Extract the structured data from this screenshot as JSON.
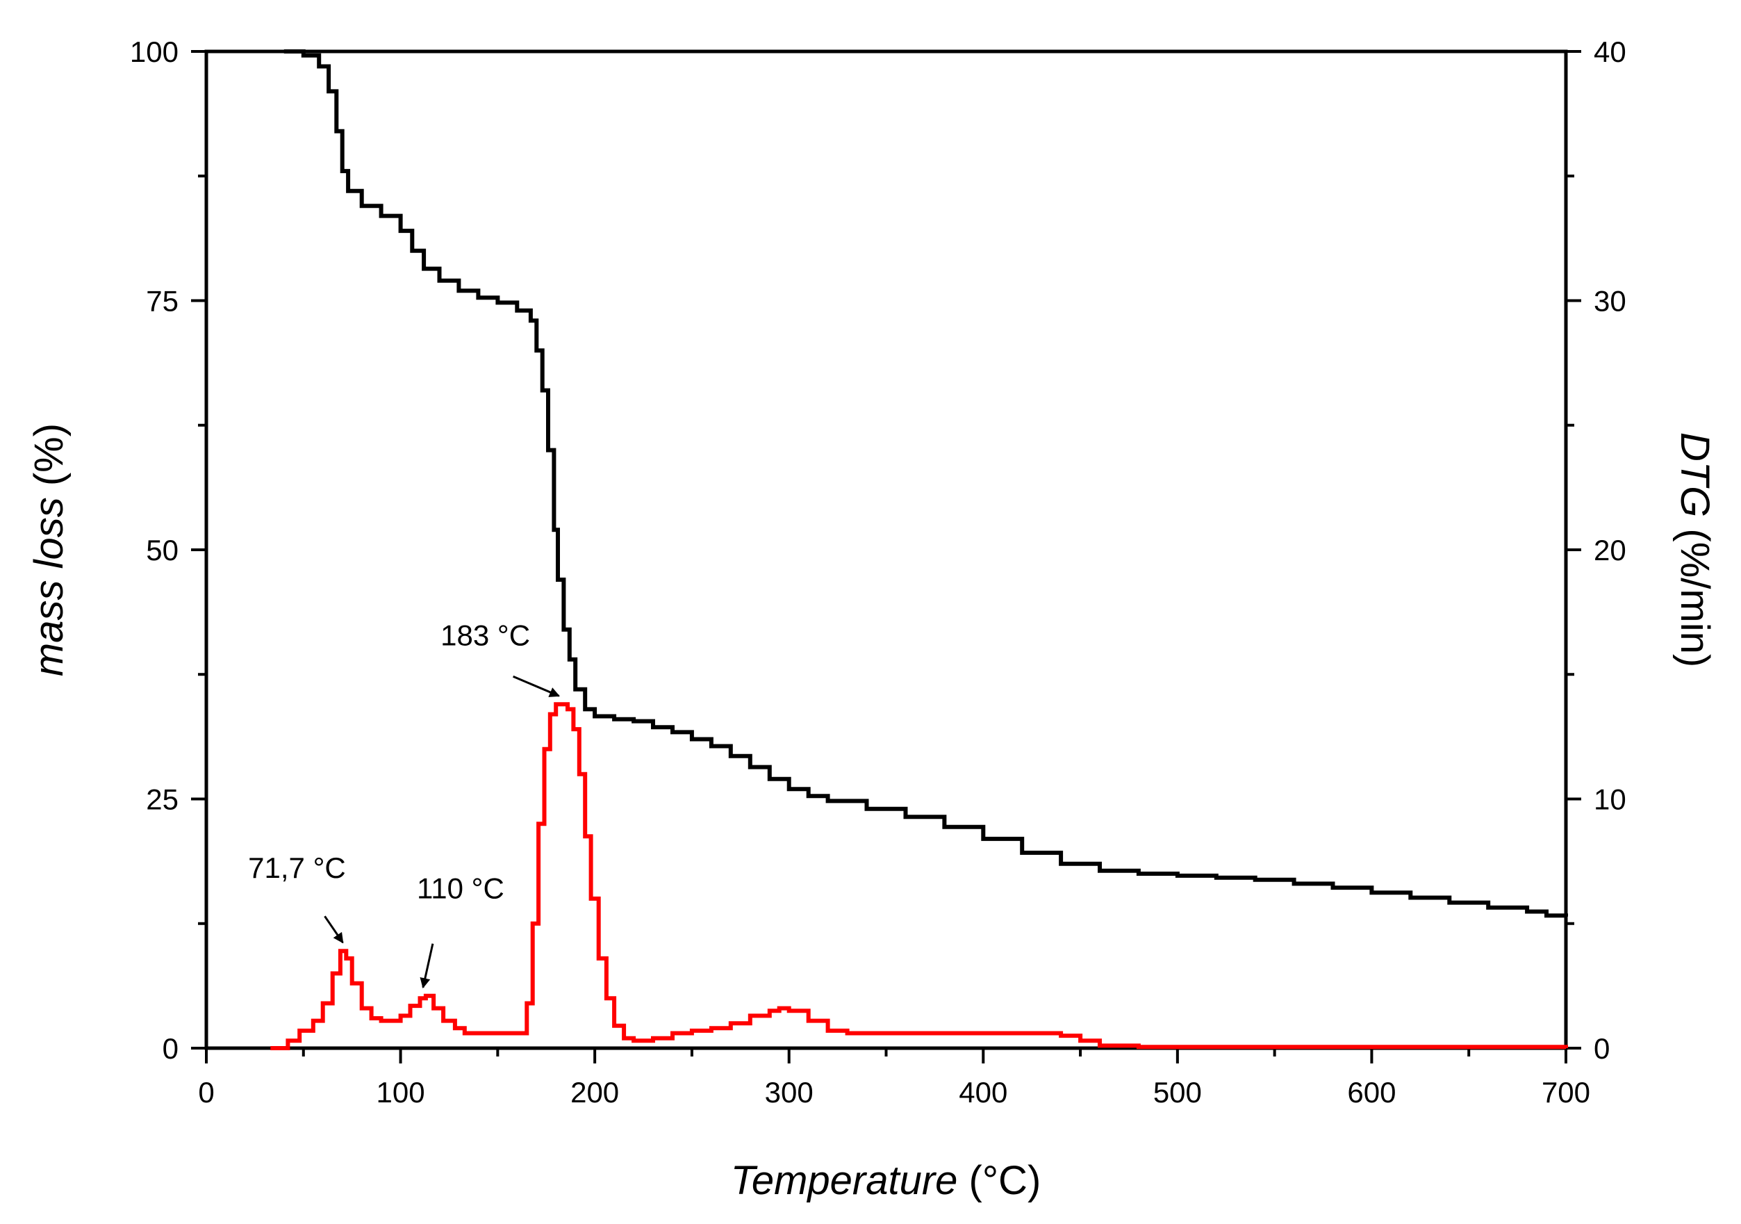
{
  "chart_data": {
    "type": "line",
    "xlabel": {
      "italic": "Temperature",
      "plain": " (°C)"
    },
    "ylabel_left": {
      "italic": "mass loss",
      "plain": " (%)"
    },
    "ylabel_right": {
      "italic": "DTG",
      "plain": " (%/min)"
    },
    "xlim": [
      0,
      700
    ],
    "ylim_left": [
      0,
      100
    ],
    "ylim_right": [
      0,
      40
    ],
    "x_ticks": [
      0,
      100,
      200,
      300,
      400,
      500,
      600,
      700
    ],
    "y_left_ticks": [
      0,
      25,
      50,
      75,
      100
    ],
    "y_right_ticks": [
      0,
      10,
      20,
      30,
      40
    ],
    "series": [
      {
        "name": "mass loss",
        "axis": "left",
        "color": "#000000",
        "x": [
          40,
          50,
          58,
          63,
          67,
          70,
          73,
          80,
          90,
          100,
          106,
          112,
          120,
          130,
          140,
          150,
          160,
          167,
          170,
          173,
          176,
          179,
          181,
          184,
          187,
          190,
          195,
          200,
          210,
          220,
          230,
          240,
          250,
          260,
          270,
          280,
          290,
          300,
          310,
          320,
          340,
          360,
          380,
          400,
          420,
          440,
          460,
          480,
          500,
          520,
          540,
          560,
          580,
          600,
          620,
          640,
          660,
          680,
          690,
          700
        ],
        "values": [
          100,
          99.6,
          98.5,
          96,
          92,
          88,
          86,
          84.5,
          83.5,
          82,
          80,
          78.2,
          77,
          76,
          75.3,
          74.8,
          74,
          73,
          70,
          66,
          60,
          52,
          47,
          42,
          39,
          36,
          34,
          33.3,
          33,
          32.8,
          32.2,
          31.7,
          31,
          30.3,
          29.3,
          28.2,
          27,
          26,
          25.3,
          24.8,
          24,
          23.2,
          22.2,
          21,
          19.6,
          18.5,
          17.8,
          17.5,
          17.3,
          17.1,
          16.9,
          16.5,
          16.1,
          15.6,
          15.1,
          14.6,
          14.1,
          13.7,
          13.3,
          13.2
        ]
      },
      {
        "name": "DTG",
        "axis": "right",
        "color": "#ff0000",
        "x": [
          33,
          42,
          48,
          55,
          60,
          65,
          69,
          72,
          75,
          80,
          85,
          90,
          95,
          100,
          105,
          110,
          113,
          117,
          122,
          128,
          133,
          140,
          150,
          160,
          165,
          168,
          171,
          174,
          177,
          180,
          183,
          186,
          189,
          192,
          195,
          198,
          202,
          206,
          210,
          215,
          220,
          230,
          240,
          250,
          260,
          270,
          280,
          290,
          295,
          300,
          310,
          320,
          330,
          340,
          360,
          380,
          400,
          420,
          440,
          450,
          460,
          480,
          500,
          530,
          560,
          600,
          640,
          680,
          700
        ],
        "values": [
          0,
          0.3,
          0.7,
          1.1,
          1.8,
          3.0,
          3.9,
          3.6,
          2.6,
          1.6,
          1.2,
          1.1,
          1.1,
          1.3,
          1.7,
          2.0,
          2.1,
          1.6,
          1.1,
          0.8,
          0.6,
          0.6,
          0.6,
          0.6,
          1.8,
          5.0,
          9.0,
          12.0,
          13.4,
          13.8,
          13.8,
          13.6,
          12.8,
          11.0,
          8.5,
          6.0,
          3.6,
          2.0,
          0.9,
          0.4,
          0.3,
          0.4,
          0.6,
          0.7,
          0.8,
          1.0,
          1.3,
          1.5,
          1.6,
          1.5,
          1.1,
          0.7,
          0.6,
          0.6,
          0.6,
          0.6,
          0.6,
          0.6,
          0.5,
          0.3,
          0.1,
          0.05,
          0.05,
          0.05,
          0.05,
          0.05,
          0.05,
          0.05,
          0
        ]
      }
    ],
    "annotations": [
      {
        "text": "71,7 °C",
        "x": 71.7,
        "y_right": 3.9
      },
      {
        "text": "110 °C",
        "x": 113,
        "y_right": 2.1
      },
      {
        "text": "183 °C",
        "x": 183,
        "y_right": 13.8
      }
    ]
  }
}
